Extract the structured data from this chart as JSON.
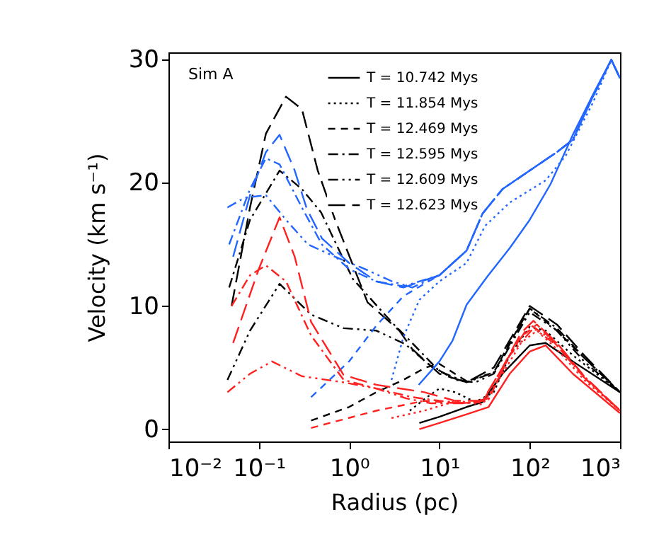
{
  "chart_data": {
    "type": "line",
    "xlabel": "Radius (pc)",
    "ylabel": "Velocity (km s⁻¹)",
    "log": "x",
    "legend": "top",
    "annotations": [
      "Sim A"
    ],
    "xlim": [
      0.01,
      1000
    ],
    "xticks": [
      {
        "value": 0.01,
        "label": "10⁻²"
      },
      {
        "value": 0.1,
        "label": "10⁻¹"
      },
      {
        "value": 1,
        "label": "10⁰"
      },
      {
        "value": 10,
        "label": "10¹"
      },
      {
        "value": 100,
        "label": "10²"
      },
      {
        "value": 1000,
        "label": "10³"
      }
    ],
    "ylim": [
      -1,
      30.6
    ],
    "yticks": [
      0,
      10,
      20,
      30
    ],
    "series": [
      {
        "name": "T = 10.742 Mys",
        "color": "#000000",
        "line_style": "solid",
        "x": [
          6,
          10,
          20,
          30,
          50,
          100,
          150,
          300,
          1000
        ],
        "values": [
          0.5,
          1,
          1.8,
          2.2,
          4.5,
          6.8,
          7,
          5.5,
          3
        ]
      },
      {
        "name": "T = 11.854 Mys",
        "color": "#000000",
        "line_style": "dotted",
        "x": [
          4.7,
          7,
          10,
          15,
          25,
          40,
          60,
          100,
          150,
          300,
          1000
        ],
        "values": [
          1.5,
          2.5,
          3.3,
          3,
          2.2,
          3,
          6,
          8.3,
          8,
          6,
          3
        ]
      },
      {
        "name": "T = 12.469 Mys",
        "color": "#000000",
        "line_style": "dashed",
        "x": [
          0.38,
          1,
          2,
          4,
          7,
          10,
          20,
          40,
          60,
          100,
          200,
          400,
          1000
        ],
        "values": [
          0.7,
          1.8,
          3,
          4,
          5,
          5.3,
          3.9,
          4.6,
          7,
          9.8,
          8,
          5.8,
          3
        ]
      },
      {
        "name": "T = 12.595 Mys",
        "color": "#000000",
        "line_style": "dashdot",
        "x": [
          0.047,
          0.08,
          0.17,
          0.3,
          0.49,
          1.1,
          2.95,
          4.7,
          10,
          20,
          40,
          100,
          200,
          400,
          1000
        ],
        "values": [
          11.5,
          17,
          21,
          19.5,
          17.6,
          12.2,
          8.7,
          7.2,
          4.7,
          3.8,
          4.6,
          9.8,
          8.2,
          5.8,
          3
        ]
      },
      {
        "name": "T = 12.609 Mys",
        "color": "#000000",
        "line_style": "dashdotdot",
        "x": [
          0.045,
          0.08,
          0.17,
          0.38,
          0.87,
          2,
          4.2,
          7.5,
          15,
          25,
          40,
          100,
          200,
          400,
          1000
        ],
        "values": [
          4,
          8,
          11.8,
          9.3,
          8.2,
          8,
          6.9,
          5.3,
          4,
          3.8,
          4.5,
          9.5,
          8,
          5.5,
          3
        ]
      },
      {
        "name": "T = 12.623 Mys",
        "color": "#000000",
        "line_style": "longdash",
        "x": [
          0.05,
          0.08,
          0.12,
          0.2,
          0.3,
          0.45,
          0.7,
          1.6,
          3.6,
          5,
          10,
          20,
          40,
          100,
          200,
          400,
          1000
        ],
        "values": [
          10,
          18,
          24,
          27,
          26,
          21,
          17,
          10.3,
          8,
          6.5,
          4.5,
          3.8,
          5,
          10,
          8.5,
          6,
          3
        ]
      },
      {
        "color": "#2266ff",
        "line_style": "solid",
        "x": [
          5.9,
          10,
          14,
          20,
          34,
          60,
          100,
          170,
          300,
          520,
          800,
          1000
        ],
        "values": [
          3.6,
          5.5,
          7.2,
          10.1,
          12.4,
          14.7,
          17,
          19.9,
          23.9,
          27.4,
          30,
          28.5
        ]
      },
      {
        "color": "#2266ff",
        "line_style": "dotted",
        "x": [
          2.95,
          4,
          6,
          10,
          20,
          32,
          60,
          150,
          250,
          500,
          800,
          1000
        ],
        "values": [
          4,
          7.5,
          10.5,
          12,
          13.5,
          16.5,
          18.4,
          20.2,
          22.2,
          26.5,
          30,
          28.5
        ]
      },
      {
        "color": "#2266ff",
        "line_style": "dashed",
        "x": [
          0.38,
          1,
          2,
          4,
          6.8,
          10,
          20,
          30,
          50,
          100,
          200,
          300,
          500,
          800,
          1000
        ],
        "values": [
          2.6,
          5.5,
          8.4,
          10.8,
          11.8,
          12.5,
          14.5,
          17.5,
          19.5,
          21,
          22.5,
          23.5,
          27,
          30,
          28.5
        ]
      },
      {
        "color": "#2266ff",
        "line_style": "dashdot",
        "x": [
          0.047,
          0.08,
          0.12,
          0.17,
          0.3,
          0.5,
          1,
          2,
          4,
          10,
          20,
          30,
          50,
          100,
          200,
          300,
          500,
          800,
          1000
        ],
        "values": [
          15,
          19.5,
          22,
          21.5,
          18,
          15,
          13,
          12,
          11.6,
          12.5,
          14.5,
          17.5,
          19.5,
          21,
          22.5,
          23.5,
          27,
          30,
          28.5
        ]
      },
      {
        "color": "#2266ff",
        "line_style": "dashdotdot",
        "x": [
          0.045,
          0.07,
          0.12,
          0.2,
          0.35,
          0.7,
          1.5,
          3,
          5,
          10,
          20,
          30,
          50,
          100,
          200,
          300,
          500,
          800,
          1000
        ],
        "values": [
          18,
          18.8,
          19,
          17,
          15,
          14,
          13,
          12,
          11.5,
          12.5,
          14.5,
          17.5,
          19.5,
          21,
          22.5,
          23.5,
          27,
          30,
          28.5
        ]
      },
      {
        "color": "#2266ff",
        "line_style": "longdash",
        "x": [
          0.052,
          0.08,
          0.12,
          0.17,
          0.25,
          0.34,
          0.5,
          1,
          2,
          4,
          10,
          20,
          30,
          50,
          100,
          200,
          300,
          500,
          800,
          1000
        ],
        "values": [
          14,
          19,
          22.5,
          23.9,
          21,
          17.9,
          15.5,
          13.5,
          12,
          11.5,
          12.5,
          14.5,
          17.5,
          19.5,
          21,
          22.5,
          23.5,
          27,
          30,
          28.5
        ]
      },
      {
        "color": "#ff2020",
        "line_style": "solid",
        "x": [
          6,
          10,
          20,
          35,
          60,
          100,
          150,
          300,
          1000
        ],
        "values": [
          0,
          0.5,
          1.2,
          1.8,
          4.5,
          6.3,
          6.8,
          4.5,
          1.3
        ]
      },
      {
        "color": "#ff2020",
        "line_style": "dotted",
        "x": [
          2.95,
          6.8,
          15.6,
          30,
          50,
          80,
          120,
          200,
          400,
          1000
        ],
        "values": [
          0.9,
          1.5,
          2.3,
          2,
          4.5,
          7,
          8,
          6.5,
          4,
          1.5
        ]
      },
      {
        "color": "#ff2020",
        "line_style": "dashed",
        "x": [
          0.38,
          2,
          6.8,
          16,
          30,
          50,
          80,
          120,
          200,
          400,
          1000
        ],
        "values": [
          0.1,
          1.5,
          2.3,
          2.1,
          2.2,
          5,
          7.5,
          8.5,
          6.8,
          4.2,
          1.5
        ]
      },
      {
        "color": "#ff2020",
        "line_style": "dashdot",
        "x": [
          0.05,
          0.08,
          0.12,
          0.2,
          0.38,
          0.87,
          2,
          5,
          10,
          20,
          35,
          60,
          100,
          200,
          400,
          1000
        ],
        "values": [
          10,
          12.5,
          13.3,
          12,
          7.6,
          4,
          3.3,
          2.6,
          2.3,
          2.1,
          2.4,
          6,
          8.5,
          7,
          4.3,
          1.5
        ]
      },
      {
        "color": "#ff2020",
        "line_style": "dashdotdot",
        "x": [
          0.045,
          0.08,
          0.14,
          0.3,
          0.87,
          2,
          4.3,
          8,
          20,
          35,
          60,
          110,
          200,
          400,
          1000
        ],
        "values": [
          3,
          4.5,
          5.5,
          4.3,
          3.8,
          3.3,
          2.5,
          2.1,
          2.1,
          2.5,
          6,
          8.2,
          6.8,
          4.2,
          1.5
        ]
      },
      {
        "color": "#ff2020",
        "line_style": "longdash",
        "x": [
          0.052,
          0.1,
          0.17,
          0.25,
          0.38,
          0.87,
          2,
          6.8,
          15,
          30,
          50,
          80,
          110,
          200,
          400,
          1000
        ],
        "values": [
          7,
          13,
          17.2,
          14,
          8.7,
          4.4,
          3.6,
          3,
          2.3,
          2.3,
          5,
          7.8,
          8.8,
          7,
          4.3,
          1.5
        ]
      }
    ]
  }
}
